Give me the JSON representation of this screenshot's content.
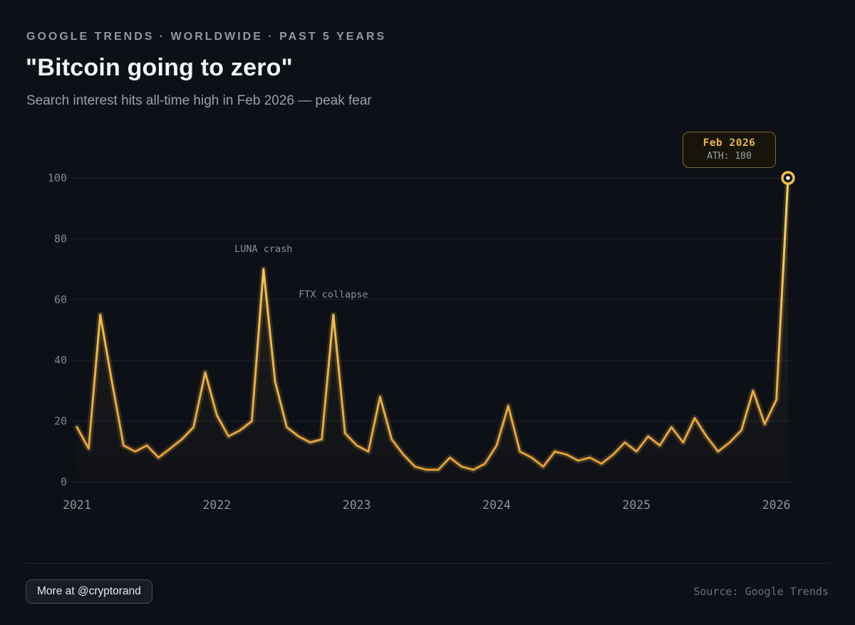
{
  "header": {
    "eyebrow": "GOOGLE TRENDS · WORLDWIDE · PAST 5 YEARS",
    "title": "\"Bitcoin going to zero\"",
    "subtitle": "Search interest hits all-time high in Feb 2026 — peak fear"
  },
  "tooltip": {
    "title": "Feb 2026",
    "value": "ATH: 100"
  },
  "chart_data": {
    "type": "line",
    "title": "\"Bitcoin going to zero\" — Google Trends search interest, worldwide, past 5 years",
    "x_start": "2021-01",
    "x_end": "2026-02",
    "x_tick_labels": [
      "2021",
      "2022",
      "2023",
      "2024",
      "2025",
      "2026"
    ],
    "y_ticks": [
      0,
      20,
      40,
      60,
      80,
      100
    ],
    "ylim": [
      0,
      100
    ],
    "grid": true,
    "legend": "none",
    "series": [
      {
        "name": "Search interest",
        "values": [
          18,
          11,
          55,
          33,
          12,
          10,
          12,
          8,
          11,
          14,
          18,
          36,
          22,
          15,
          17,
          20,
          70,
          33,
          18,
          15,
          13,
          14,
          55,
          16,
          12,
          10,
          28,
          14,
          9,
          5,
          4,
          4,
          8,
          5,
          4,
          6,
          12,
          25,
          10,
          8,
          5,
          10,
          9,
          7,
          8,
          6,
          9,
          13,
          10,
          15,
          12,
          18,
          13,
          21,
          15,
          10,
          13,
          17,
          30,
          19,
          27,
          100
        ]
      }
    ],
    "annotations": [
      {
        "label": "LUNA crash",
        "month_index": 16,
        "value": 70
      },
      {
        "label": "FTX collapse",
        "month_index": 22,
        "value": 55
      }
    ],
    "end_marker": {
      "month_index": 61,
      "value": 100,
      "label": "ATH: 100"
    }
  },
  "footer": {
    "button_label": "More at @cryptorand",
    "source": "Source: Google Trends"
  },
  "colors": {
    "background": "#0d1017",
    "accent": "#f5c242",
    "line_top": "#ffd75e",
    "line_bottom": "#e39b35",
    "area_fill": "#f3ba4a",
    "tooltip_border": "#7b6831",
    "tooltip_title": "#e7b64a"
  }
}
